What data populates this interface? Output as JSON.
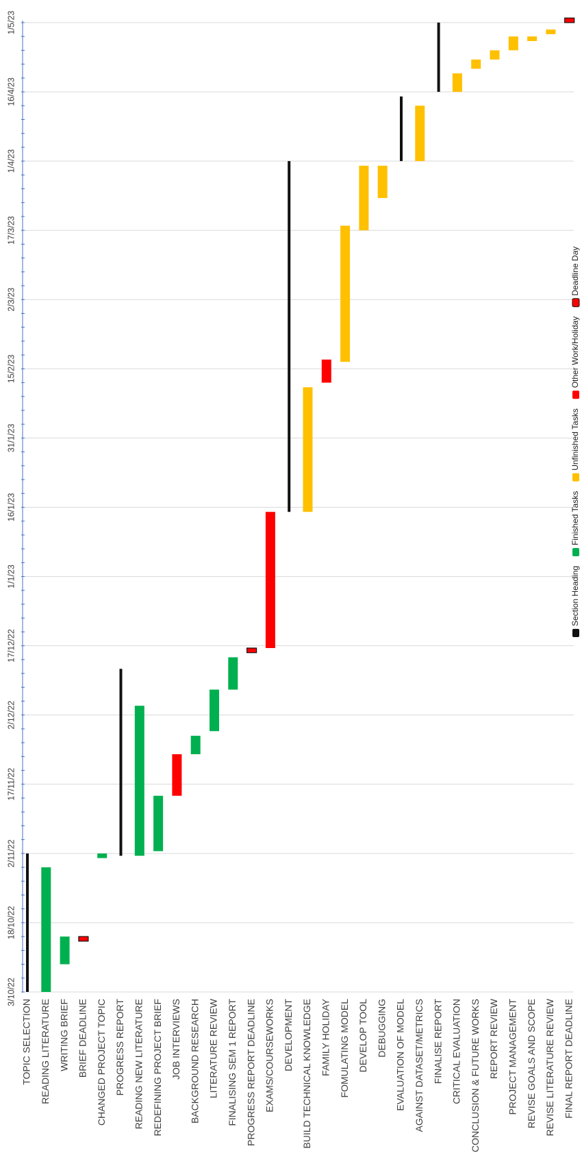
{
  "chart_data": {
    "type": "gantt",
    "orientation": "rotated-90-clockwise",
    "time_axis": {
      "ticks": [
        "3/10/22",
        "18/10/22",
        "2/11/22",
        "17/11/22",
        "2/12/22",
        "17/12/22",
        "1/1/23",
        "16/1/23",
        "31/1/23",
        "15/2/23",
        "2/3/23",
        "17/3/23",
        "1/4/23",
        "16/4/23",
        "1/5/23"
      ],
      "tick_days": [
        0,
        15,
        30,
        45,
        60,
        75,
        90,
        105,
        120,
        135,
        150,
        165,
        180,
        195,
        210
      ],
      "range_days": [
        0,
        210
      ],
      "minor_tick_step_days": 3,
      "grid": true
    },
    "tasks": [
      {
        "name": "TOPIC SELECTION",
        "start": 0,
        "end": 30,
        "category": "Section Heading"
      },
      {
        "name": "READING LITERATURE",
        "start": 0,
        "end": 27,
        "category": "Finished Tasks"
      },
      {
        "name": "WRITING BRIEF",
        "start": 6,
        "end": 12,
        "category": "Finished Tasks"
      },
      {
        "name": "BRIEF DEADLINE",
        "start": 11,
        "end": 12,
        "category": "Deadline Day"
      },
      {
        "name": "CHANGED PROJECT TOPIC",
        "start": 29,
        "end": 30,
        "category": "Finished Tasks"
      },
      {
        "name": "PROGRESS REPORT",
        "start": 29.5,
        "end": 70,
        "category": "Section Heading"
      },
      {
        "name": "READING NEW LITERATURE",
        "start": 29.5,
        "end": 62,
        "category": "Finished Tasks"
      },
      {
        "name": "REDEFINING PROJECT BRIEF",
        "start": 30.5,
        "end": 42.5,
        "category": "Finished Tasks"
      },
      {
        "name": "JOB INTERVIEWS",
        "start": 42.5,
        "end": 51.5,
        "category": "Other Work/Holiday"
      },
      {
        "name": "BACKGROUND RESEARCH",
        "start": 51.5,
        "end": 55.5,
        "category": "Finished Tasks"
      },
      {
        "name": "LITERATURE REVIEW",
        "start": 56.5,
        "end": 65.5,
        "category": "Finished Tasks"
      },
      {
        "name": "FINALISING SEM 1 REPORT",
        "start": 65.5,
        "end": 72.5,
        "category": "Finished Tasks"
      },
      {
        "name": "PROGRESS REPORT DEADLINE",
        "start": 73.5,
        "end": 74.5,
        "category": "Deadline Day"
      },
      {
        "name": "EXAMS/COURSEWORKS",
        "start": 74.5,
        "end": 104,
        "category": "Other Work/Holiday"
      },
      {
        "name": "DEVELOPMENT",
        "start": 104,
        "end": 180,
        "category": "Section Heading"
      },
      {
        "name": "BUILD TECHNICAL KNOWLEDGE",
        "start": 104,
        "end": 131,
        "category": "Unfinished Tasks"
      },
      {
        "name": "FAMILY HOLIDAY",
        "start": 132,
        "end": 137,
        "category": "Other Work/Holiday"
      },
      {
        "name": "FOMULATING MODEL",
        "start": 136.5,
        "end": 166,
        "category": "Unfinished Tasks"
      },
      {
        "name": "DEVELOP TOOL",
        "start": 165,
        "end": 179,
        "category": "Unfinished Tasks"
      },
      {
        "name": "DEBUGGING",
        "start": 172,
        "end": 179,
        "category": "Unfinished Tasks"
      },
      {
        "name": "EVALUATION OF MODEL",
        "start": 180,
        "end": 194,
        "category": "Section Heading"
      },
      {
        "name": "AGAINST DATASET/METRICS",
        "start": 180,
        "end": 192,
        "category": "Unfinished Tasks"
      },
      {
        "name": "FINALISE REPORT",
        "start": 195,
        "end": 210,
        "category": "Section Heading"
      },
      {
        "name": "CRITICAL EVALUATION",
        "start": 195,
        "end": 199,
        "category": "Unfinished Tasks"
      },
      {
        "name": "CONCLUSION & FUTURE WORKS",
        "start": 200,
        "end": 202,
        "category": "Unfinished Tasks"
      },
      {
        "name": "REPORT REVIEW",
        "start": 202,
        "end": 204,
        "category": "Unfinished Tasks"
      },
      {
        "name": "PROJECT MANAGEMENT",
        "start": 204,
        "end": 207,
        "category": "Unfinished Tasks"
      },
      {
        "name": "REVISE GOALS AND SCOPE",
        "start": 206,
        "end": 207,
        "category": "Unfinished Tasks"
      },
      {
        "name": "REVISE LITERATURE REVIEW",
        "start": 207.5,
        "end": 208.5,
        "category": "Unfinished Tasks"
      },
      {
        "name": "FINAL REPORT DEADLINE",
        "start": 210,
        "end": 211,
        "category": "Deadline Day"
      }
    ],
    "legend": {
      "placement": "right",
      "items": [
        {
          "label": "Section Heading",
          "color": "#111111"
        },
        {
          "label": "Finished Tasks",
          "color": "#00b050"
        },
        {
          "label": "Unfinished Tasks",
          "color": "#ffc000"
        },
        {
          "label": "Other Work/Holiday",
          "color": "#ff0000"
        },
        {
          "label": "Deadline Day",
          "color": "#ff0000"
        }
      ]
    },
    "colors": {
      "Section Heading": "#111111",
      "Finished Tasks": "#00b050",
      "Unfinished Tasks": "#ffc000",
      "Other Work/Holiday": "#ff0000",
      "Deadline Day": "#ff0000",
      "grid": "#d9d9d9",
      "axis": "#4472c4"
    }
  }
}
